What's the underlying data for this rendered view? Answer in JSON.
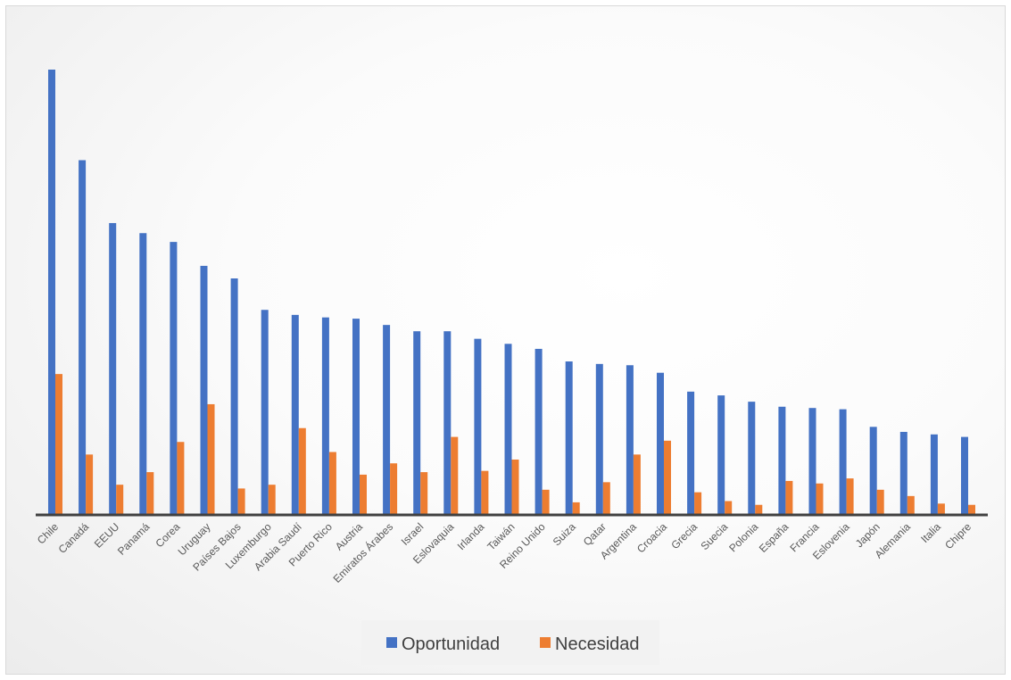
{
  "chart_data": {
    "type": "bar",
    "categories": [
      "Chile",
      "Canadá",
      "EEUU",
      "Panamá",
      "Corea",
      "Uruguay",
      "Países Bajos",
      "Luxemburgo",
      "Arabia Saudí",
      "Puerto Rico",
      "Austria",
      "Emiratos Árabes",
      "Israel",
      "Eslovaquia",
      "Irlanda",
      "Taiwán",
      "Reino Unido",
      "Suiza",
      "Qatar",
      "Argentina",
      "Croacia",
      "Grecia",
      "Suecia",
      "Polonia",
      "España",
      "Francia",
      "Eslovenia",
      "Japón",
      "Alemania",
      "Italia",
      "Chipre"
    ],
    "series": [
      {
        "name": "Oportunidad",
        "color": "#4472c4",
        "values": [
          35.4,
          28.2,
          23.2,
          22.4,
          21.7,
          19.8,
          18.8,
          16.3,
          15.9,
          15.7,
          15.6,
          15.1,
          14.6,
          14.6,
          14.0,
          13.6,
          13.2,
          12.2,
          12.0,
          11.9,
          11.3,
          9.8,
          9.5,
          9.0,
          8.6,
          8.5,
          8.4,
          7.0,
          6.6,
          6.4,
          6.2
        ]
      },
      {
        "name": "Necesidad",
        "color": "#ed7d31",
        "values": [
          11.2,
          4.8,
          2.4,
          3.4,
          5.8,
          8.8,
          2.1,
          2.4,
          6.9,
          5.0,
          3.2,
          4.1,
          3.4,
          6.2,
          3.5,
          4.4,
          2.0,
          1.0,
          2.6,
          4.8,
          5.9,
          1.8,
          1.1,
          0.8,
          2.7,
          2.5,
          2.9,
          2.0,
          1.5,
          0.9,
          0.8
        ]
      }
    ],
    "ylim": [
      0,
      40
    ],
    "grid": false,
    "legend": "bottom"
  }
}
